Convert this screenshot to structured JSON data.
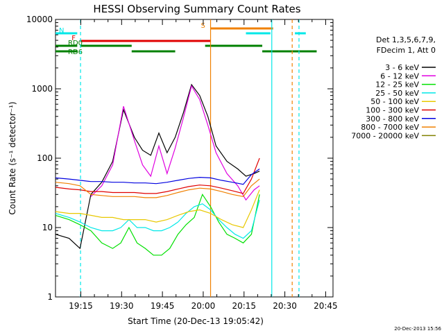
{
  "chart_data": {
    "type": "line",
    "title": "HESSI Observing Summary Count Rates",
    "xlabel": "Start Time (20-Dec-13 19:05:42)",
    "ylabel": "Count Rate (s⁻¹ detector⁻¹)",
    "x_units": "minutes after 19:05:42",
    "xlim": [
      0,
      102
    ],
    "ylim": [
      1,
      10000
    ],
    "y_scale": "log",
    "x_ticks": [
      "19:15",
      "19:30",
      "19:45",
      "20:00",
      "20:15",
      "20:30",
      "20:45"
    ],
    "y_ticks": [
      "1",
      "10",
      "100",
      "1000",
      "10000"
    ],
    "legend_position": "right",
    "legend_header": [
      "Det 1,3,5,6,7,9,",
      "FDecim 1, Att 0"
    ],
    "timestamp": "20-Dec-2013 15:56",
    "grid": false,
    "series": [
      {
        "name": "3 - 6 keV",
        "color": "#000000",
        "x": [
          0,
          5,
          9,
          13,
          17,
          21,
          25,
          29,
          32,
          35,
          38,
          41,
          44,
          47,
          50,
          53,
          56,
          59,
          63,
          67,
          70,
          73,
          75
        ],
        "y": [
          8,
          7,
          5,
          30,
          45,
          90,
          500,
          200,
          130,
          110,
          230,
          120,
          200,
          450,
          1150,
          800,
          400,
          150,
          90,
          70,
          55,
          60,
          65
        ]
      },
      {
        "name": "6 - 12 keV",
        "color": "#e000e0",
        "x": [
          13,
          17,
          21,
          25,
          29,
          32,
          35,
          38,
          41,
          44,
          47,
          50,
          53,
          56,
          59,
          63,
          67,
          70,
          73,
          75
        ],
        "y": [
          28,
          40,
          80,
          560,
          180,
          80,
          55,
          150,
          60,
          140,
          380,
          1100,
          700,
          300,
          120,
          60,
          40,
          25,
          35,
          40
        ]
      },
      {
        "name": "12 - 25 keV",
        "color": "#00e000",
        "x": [
          0,
          5,
          9,
          13,
          17,
          21,
          24,
          27,
          30,
          33,
          36,
          39,
          42,
          45,
          48,
          51,
          54,
          57,
          60,
          63,
          66,
          69,
          72,
          75
        ],
        "y": [
          15,
          13,
          11,
          9,
          6,
          5,
          6,
          10,
          6,
          5,
          4,
          4,
          5,
          8,
          11,
          14,
          30,
          20,
          12,
          8,
          7,
          6,
          8,
          30
        ]
      },
      {
        "name": "25 - 50 keV",
        "color": "#00e8e8",
        "x": [
          0,
          5,
          9,
          13,
          17,
          21,
          24,
          27,
          30,
          33,
          36,
          39,
          42,
          45,
          48,
          51,
          54,
          57,
          60,
          63,
          66,
          69,
          72,
          75
        ],
        "y": [
          16,
          14,
          12,
          10,
          9,
          9,
          10,
          13,
          10,
          10,
          9,
          9,
          10,
          12,
          16,
          20,
          22,
          18,
          13,
          10,
          8,
          7,
          9,
          25
        ]
      },
      {
        "name": "50 - 100 keV",
        "color": "#e8c800",
        "x": [
          0,
          5,
          9,
          13,
          17,
          21,
          25,
          29,
          33,
          37,
          41,
          45,
          49,
          53,
          57,
          61,
          65,
          69,
          72,
          75
        ],
        "y": [
          17,
          16,
          16,
          15,
          14,
          14,
          13,
          13,
          13,
          12,
          13,
          15,
          17,
          18,
          16,
          13,
          11,
          10,
          18,
          35
        ]
      },
      {
        "name": "100 - 300 keV",
        "color": "#e00000",
        "x": [
          0,
          5,
          9,
          13,
          17,
          21,
          25,
          29,
          33,
          37,
          41,
          45,
          49,
          53,
          57,
          61,
          65,
          69,
          72,
          75
        ],
        "y": [
          38,
          36,
          35,
          33,
          33,
          32,
          32,
          32,
          31,
          31,
          33,
          36,
          39,
          41,
          40,
          37,
          34,
          31,
          50,
          100
        ]
      },
      {
        "name": "300 - 800 keV",
        "color": "#0000e0",
        "x": [
          0,
          5,
          9,
          13,
          17,
          21,
          25,
          29,
          33,
          37,
          41,
          45,
          49,
          53,
          57,
          61,
          65,
          69,
          72,
          75
        ],
        "y": [
          52,
          50,
          48,
          46,
          46,
          45,
          45,
          44,
          44,
          43,
          45,
          48,
          51,
          53,
          52,
          48,
          45,
          42,
          58,
          70
        ]
      },
      {
        "name": "800 - 7000 keV",
        "color": "#f08000",
        "x": [
          0,
          5,
          9,
          13,
          17,
          21,
          25,
          29,
          33,
          37,
          41,
          45,
          49,
          53,
          57,
          61,
          65,
          69,
          72,
          75
        ],
        "y": [
          45,
          43,
          40,
          30,
          29,
          28,
          28,
          28,
          27,
          27,
          29,
          32,
          35,
          37,
          36,
          33,
          30,
          28,
          40,
          50
        ]
      },
      {
        "name": "7000 - 20000 keV",
        "color": "#808000",
        "x": [],
        "y": []
      }
    ],
    "bars": [
      {
        "label": "N",
        "color": "#00e8e8",
        "segments": [
          [
            0,
            8
          ],
          [
            70,
            79
          ],
          [
            88,
            92
          ]
        ]
      },
      {
        "label": "F",
        "color": "#e00000",
        "segments": [
          [
            9,
            57
          ]
        ]
      },
      {
        "label": "RD0",
        "color": "#008000",
        "segments": [
          [
            0,
            8
          ],
          [
            9,
            28
          ],
          [
            55,
            76
          ]
        ]
      },
      {
        "label": "RD6",
        "color": "#008000",
        "segments": [
          [
            0,
            8
          ],
          [
            28,
            44
          ],
          [
            76,
            96
          ]
        ]
      },
      {
        "label": "S",
        "color": "#f08000",
        "segments": [
          [
            57,
            80
          ]
        ]
      }
    ],
    "vlines": [
      {
        "x": 9.2,
        "color": "#00e8e8",
        "style": "dash"
      },
      {
        "x": 57,
        "color": "#f08000",
        "style": "solid"
      },
      {
        "x": 79.5,
        "color": "#00e8e8",
        "style": "solid"
      },
      {
        "x": 87,
        "color": "#f08000",
        "style": "dash"
      },
      {
        "x": 89.5,
        "color": "#00e8e8",
        "style": "dash"
      }
    ]
  }
}
